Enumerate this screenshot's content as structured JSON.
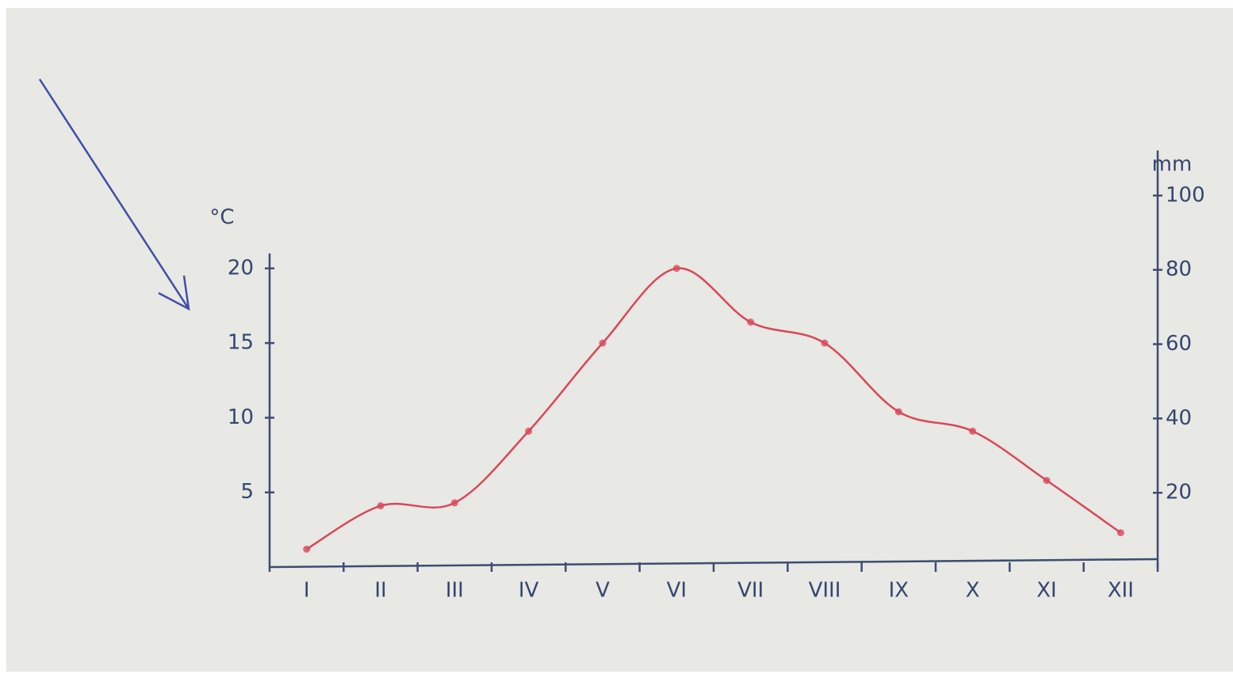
{
  "chart_data": {
    "type": "line",
    "ylabel": "°C",
    "y2label": "mm",
    "categories": [
      "I",
      "II",
      "III",
      "IV",
      "V",
      "VI",
      "VII",
      "VIII",
      "IX",
      "X",
      "XI",
      "XII"
    ],
    "values": [
      1.2,
      4.1,
      4.3,
      9.1,
      15.0,
      20.0,
      16.4,
      15.0,
      10.4,
      9.1,
      5.8,
      2.3
    ],
    "color": "#d9475a",
    "ylim": [
      0,
      21
    ],
    "yticks": [
      5,
      10,
      15,
      20
    ],
    "y2lim": [
      0,
      110
    ],
    "y2ticks": [
      20,
      40,
      60,
      80,
      100
    ]
  }
}
